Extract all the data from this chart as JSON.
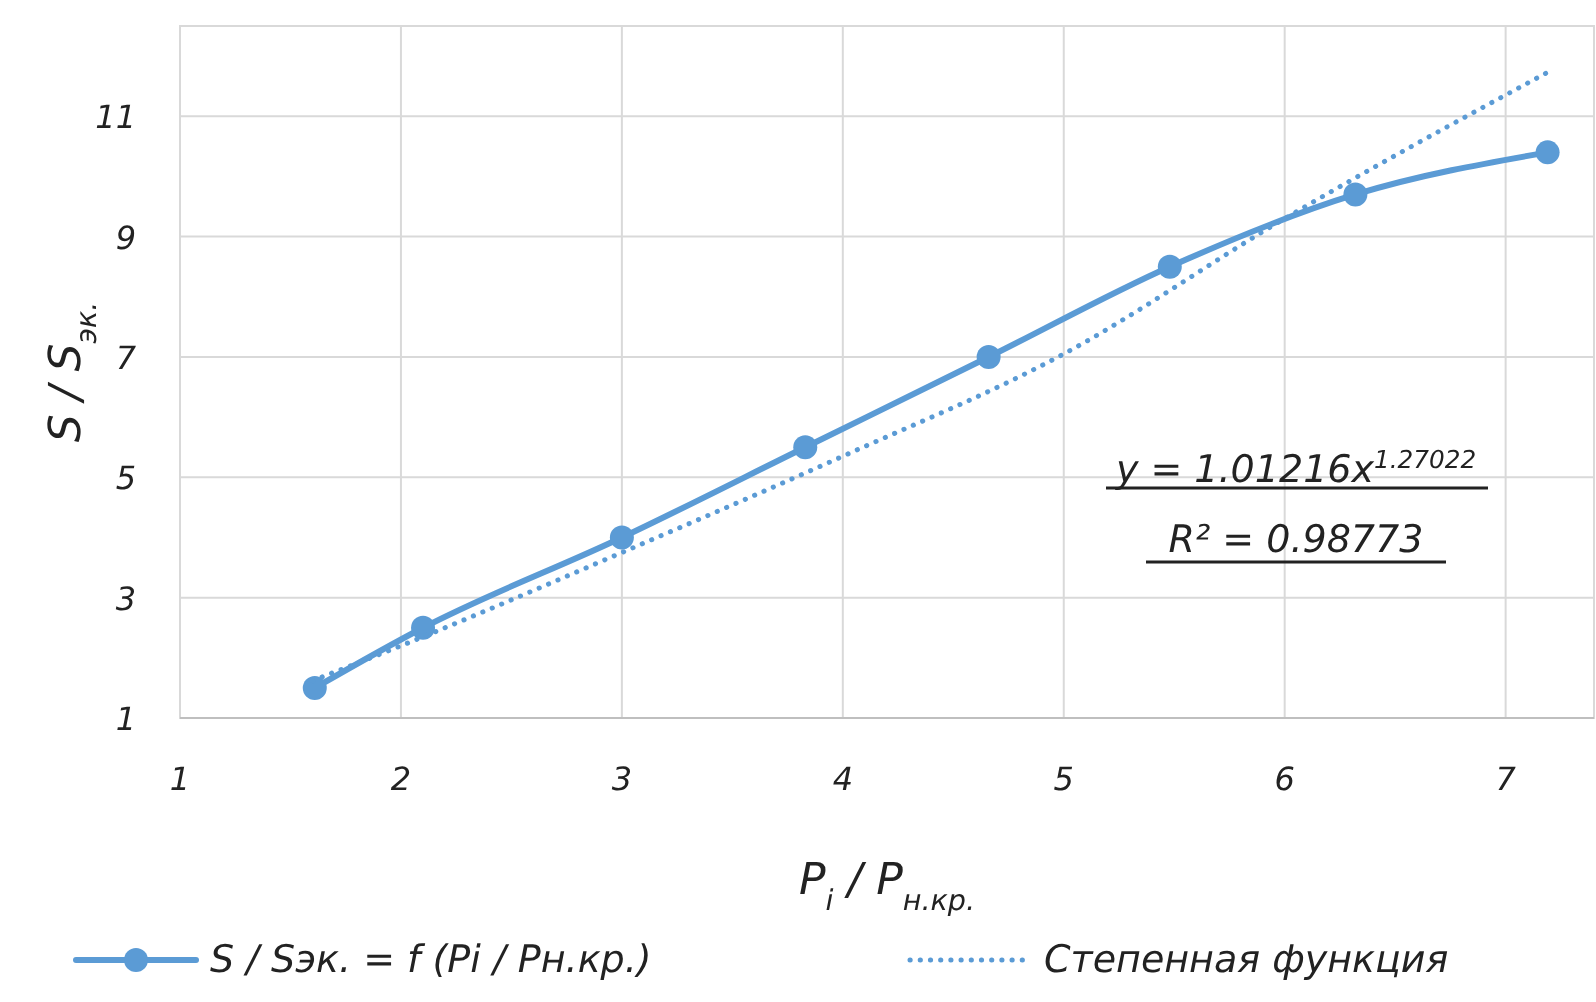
{
  "chart_data": {
    "type": "line",
    "xlabel": "P$_{i}$ / P$_{н.кр.}$",
    "ylabel": "S / S$_{эк.}$",
    "xlim": [
      1,
      7.4
    ],
    "ylim": [
      1,
      12.5
    ],
    "xticks": [
      1,
      2,
      3,
      4,
      5,
      6,
      7
    ],
    "yticks": [
      1,
      3,
      5,
      7,
      9,
      11
    ],
    "grid": true,
    "legend": "bottom",
    "series": [
      {
        "name": "S / Sэк. = f (Pi / Pн.кр.)",
        "color": "#5b9bd5",
        "marker": "circle",
        "line_style": "solid",
        "x": [
          1.61,
          2.1,
          3.0,
          3.83,
          4.66,
          5.48,
          6.32,
          7.19
        ],
        "values": [
          1.5,
          2.5,
          4.0,
          5.5,
          7.0,
          8.5,
          9.7,
          10.4
        ]
      },
      {
        "name": "Степенная функция",
        "color": "#5b9bd5",
        "marker": "none",
        "line_style": "dotted",
        "x": [
          1.6,
          2,
          3,
          4,
          5,
          6,
          7.2
        ],
        "values": [
          1.62,
          2.2,
          3.75,
          5.35,
          7.05,
          9.3,
          11.75
        ]
      }
    ],
    "annotations": [
      "y = 1.01216x$^{1.27022}$",
      "R² = 0.98773"
    ]
  }
}
